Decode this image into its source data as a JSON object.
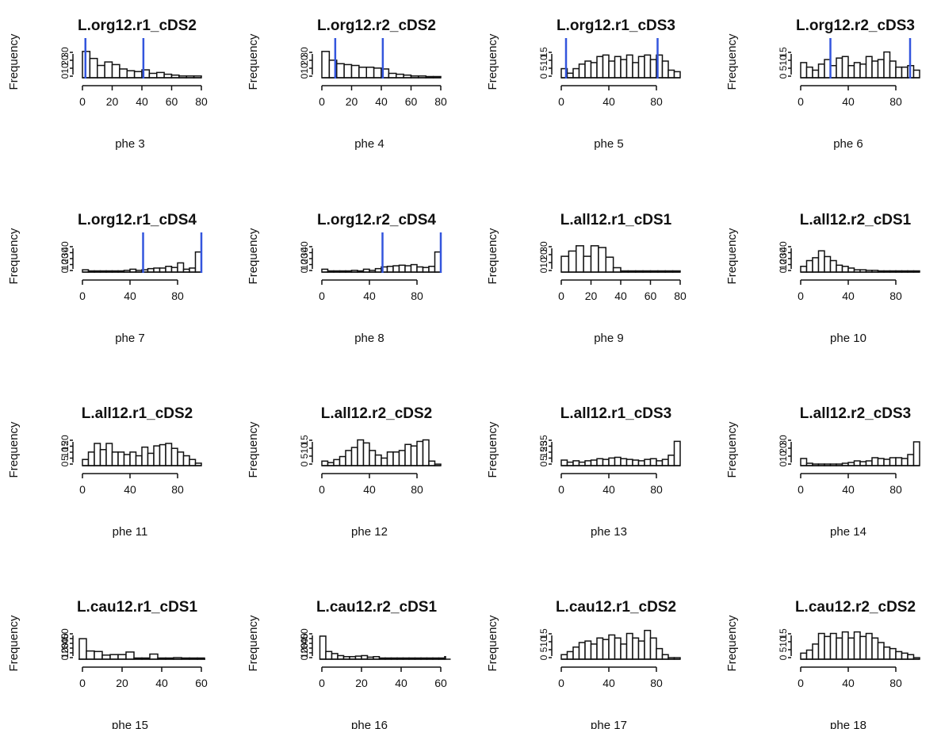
{
  "chart_data": [
    {
      "type": "bar",
      "title": "L.org12.r1_cDS2",
      "xlabel": "phe 3",
      "ylabel": "Frequency",
      "xlim": [
        0,
        80
      ],
      "xticks": [
        0,
        20,
        40,
        60,
        80
      ],
      "yticks": [
        "0",
        "10",
        "20",
        "30"
      ],
      "ylim": [
        0,
        38
      ],
      "bin_start": 0,
      "bin_width": 5,
      "values": [
        30,
        22,
        14,
        18,
        15,
        10,
        8,
        7,
        9,
        5,
        6,
        4,
        3,
        2,
        2,
        2
      ],
      "markers": [
        2,
        41
      ]
    },
    {
      "type": "bar",
      "title": "L.org12.r2_cDS2",
      "xlabel": "phe 4",
      "ylabel": "Frequency",
      "xlim": [
        0,
        80
      ],
      "xticks": [
        0,
        20,
        40,
        60,
        80
      ],
      "yticks": [
        "0",
        "10",
        "20",
        "30"
      ],
      "ylim": [
        0,
        38
      ],
      "bin_start": 0,
      "bin_width": 5,
      "values": [
        30,
        20,
        16,
        15,
        14,
        12,
        12,
        11,
        10,
        5,
        4,
        3,
        2,
        2,
        1,
        1
      ],
      "markers": [
        9,
        41
      ]
    },
    {
      "type": "bar",
      "title": "L.org12.r1_cDS3",
      "xlabel": "phe 5",
      "ylabel": "Frequency",
      "xlim": [
        0,
        100
      ],
      "xticks": [
        0,
        40,
        80
      ],
      "yticks": [
        "0",
        "5",
        "10",
        "15"
      ],
      "ylim": [
        0,
        22
      ],
      "bin_start": 0,
      "bin_width": 5,
      "values": [
        6,
        3,
        6,
        9,
        11,
        10,
        14,
        15,
        11,
        14,
        12,
        15,
        10,
        14,
        15,
        12,
        15,
        11,
        5,
        4
      ],
      "markers": [
        4,
        81
      ]
    },
    {
      "type": "bar",
      "title": "L.org12.r2_cDS3",
      "xlabel": "phe 6",
      "ylabel": "Frequency",
      "xlim": [
        0,
        100
      ],
      "xticks": [
        0,
        40,
        80
      ],
      "yticks": [
        "0",
        "5",
        "10",
        "15"
      ],
      "ylim": [
        0,
        22
      ],
      "bin_start": 0,
      "bin_width": 5,
      "values": [
        10,
        7,
        5,
        9,
        12,
        8,
        13,
        14,
        8,
        10,
        9,
        14,
        11,
        12,
        17,
        11,
        7,
        7,
        8,
        5
      ],
      "markers": [
        25,
        92
      ]
    },
    {
      "type": "bar",
      "title": "L.org12.r1_cDS4",
      "xlabel": "phe 7",
      "ylabel": "Frequency",
      "xlim": [
        0,
        100
      ],
      "xticks": [
        0,
        40,
        80
      ],
      "yticks": [
        "0",
        "10",
        "20",
        "30",
        "40"
      ],
      "ylim": [
        0,
        58
      ],
      "bin_start": 0,
      "bin_width": 5,
      "values": [
        4,
        1,
        1,
        1,
        2,
        2,
        2,
        3,
        5,
        3,
        4,
        6,
        7,
        7,
        10,
        8,
        16,
        5,
        7,
        35
      ],
      "markers": [
        51,
        100
      ]
    },
    {
      "type": "bar",
      "title": "L.org12.r2_cDS4",
      "xlabel": "phe 8",
      "ylabel": "Frequency",
      "xlim": [
        0,
        100
      ],
      "xticks": [
        0,
        40,
        80
      ],
      "yticks": [
        "0",
        "10",
        "20",
        "30",
        "40"
      ],
      "ylim": [
        0,
        58
      ],
      "bin_start": 0,
      "bin_width": 5,
      "values": [
        5,
        1,
        1,
        1,
        2,
        3,
        2,
        5,
        3,
        6,
        9,
        10,
        11,
        12,
        11,
        13,
        9,
        8,
        10,
        35
      ],
      "markers": [
        51,
        100
      ]
    },
    {
      "type": "bar",
      "title": "L.all12.r1_cDS1",
      "xlabel": "phe 9",
      "ylabel": "Frequency",
      "xlim": [
        0,
        80
      ],
      "xticks": [
        0,
        20,
        40,
        60,
        80
      ],
      "yticks": [
        "0",
        "10",
        "20",
        "30"
      ],
      "ylim": [
        0,
        38
      ],
      "bin_start": 0,
      "bin_width": 5,
      "values": [
        18,
        24,
        30,
        18,
        30,
        28,
        17,
        5,
        1,
        1,
        1,
        1,
        1,
        1,
        1,
        1
      ]
    },
    {
      "type": "bar",
      "title": "L.all12.r2_cDS1",
      "xlabel": "phe 10",
      "ylabel": "Frequency",
      "xlim": [
        0,
        100
      ],
      "xticks": [
        0,
        40,
        80
      ],
      "yticks": [
        "0",
        "10",
        "20",
        "30",
        "40"
      ],
      "ylim": [
        0,
        58
      ],
      "bin_start": 0,
      "bin_width": 5,
      "values": [
        10,
        20,
        25,
        37,
        27,
        20,
        12,
        10,
        7,
        4,
        4,
        3,
        3,
        2,
        2,
        2,
        2,
        2,
        2,
        2
      ]
    },
    {
      "type": "bar",
      "title": "L.all12.r1_cDS2",
      "xlabel": "phe 11",
      "ylabel": "Frequency",
      "xlim": [
        0,
        100
      ],
      "xticks": [
        0,
        40,
        80
      ],
      "yticks": [
        "0",
        "5",
        "10",
        "15",
        "20"
      ],
      "ylim": [
        0,
        27
      ],
      "bin_start": 0,
      "bin_width": 5,
      "values": [
        5,
        11,
        18,
        13,
        18,
        11,
        11,
        9,
        11,
        8,
        15,
        10,
        16,
        17,
        18,
        14,
        11,
        8,
        5,
        2
      ]
    },
    {
      "type": "bar",
      "title": "L.all12.r2_cDS2",
      "xlabel": "phe 12",
      "ylabel": "Frequency",
      "xlim": [
        0,
        100
      ],
      "xticks": [
        0,
        40,
        80
      ],
      "yticks": [
        "0",
        "5",
        "10",
        "15"
      ],
      "ylim": [
        0,
        22
      ],
      "bin_start": 0,
      "bin_width": 5,
      "values": [
        3,
        2,
        4,
        6,
        10,
        12,
        17,
        15,
        10,
        7,
        5,
        9,
        9,
        10,
        14,
        13,
        16,
        17,
        3,
        1
      ]
    },
    {
      "type": "bar",
      "title": "L.all12.r1_cDS3",
      "xlabel": "phe 13",
      "ylabel": "Frequency",
      "xlim": [
        0,
        100
      ],
      "xticks": [
        0,
        40,
        80
      ],
      "yticks": [
        "0",
        "5",
        "15",
        "25",
        "35"
      ],
      "ylim": [
        0,
        48
      ],
      "bin_start": 0,
      "bin_width": 5,
      "values": [
        8,
        5,
        7,
        5,
        7,
        8,
        10,
        9,
        11,
        12,
        10,
        9,
        8,
        7,
        9,
        10,
        7,
        9,
        15,
        35
      ]
    },
    {
      "type": "bar",
      "title": "L.all12.r2_cDS3",
      "xlabel": "phe 14",
      "ylabel": "Frequency",
      "xlim": [
        0,
        100
      ],
      "xticks": [
        0,
        40,
        80
      ],
      "yticks": [
        "0",
        "10",
        "20",
        "30"
      ],
      "ylim": [
        0,
        42
      ],
      "bin_start": 0,
      "bin_width": 5,
      "values": [
        9,
        3,
        2,
        2,
        2,
        2,
        2,
        3,
        4,
        6,
        5,
        6,
        10,
        9,
        8,
        10,
        10,
        9,
        14,
        30
      ]
    },
    {
      "type": "bar",
      "title": "L.cau12.r1_cDS1",
      "xlabel": "phe 15",
      "ylabel": "Frequency",
      "xlim": [
        0,
        60
      ],
      "xticks": [
        0,
        20,
        40,
        60
      ],
      "yticks": [
        "0",
        "10",
        "20",
        "30",
        "40",
        "50"
      ],
      "ylim": [
        0,
        65
      ],
      "bin_start": -2,
      "bin_width": 4,
      "values": [
        40,
        16,
        15,
        8,
        9,
        9,
        14,
        2,
        2,
        10,
        2,
        2,
        3,
        2,
        2,
        1
      ]
    },
    {
      "type": "bar",
      "title": "L.cau12.r2_cDS1",
      "xlabel": "phe 16",
      "ylabel": "Frequency",
      "xlim": [
        0,
        60
      ],
      "xticks": [
        0,
        20,
        40,
        60
      ],
      "yticks": [
        "0",
        "10",
        "20",
        "30",
        "40",
        "50"
      ],
      "ylim": [
        0,
        65
      ],
      "bin_start": -1,
      "bin_width": 3,
      "values": [
        45,
        15,
        11,
        7,
        5,
        5,
        6,
        7,
        4,
        5,
        2,
        2,
        2,
        2,
        2,
        2,
        2,
        2,
        2,
        2,
        2,
        5
      ]
    },
    {
      "type": "bar",
      "title": "L.cau12.r1_cDS2",
      "xlabel": "phe 17",
      "ylabel": "Frequency",
      "xlim": [
        0,
        100
      ],
      "xticks": [
        0,
        40,
        80
      ],
      "yticks": [
        "0",
        "5",
        "10",
        "15"
      ],
      "ylim": [
        0,
        22
      ],
      "bin_start": 0,
      "bin_width": 5,
      "values": [
        3,
        5,
        8,
        11,
        12,
        10,
        14,
        13,
        16,
        14,
        10,
        17,
        14,
        12,
        19,
        14,
        7,
        3,
        1,
        1
      ]
    },
    {
      "type": "bar",
      "title": "L.cau12.r2_cDS2",
      "xlabel": "phe 18",
      "ylabel": "Frequency",
      "xlim": [
        0,
        100
      ],
      "xticks": [
        0,
        40,
        80
      ],
      "yticks": [
        "0",
        "5",
        "10",
        "15"
      ],
      "ylim": [
        0,
        22
      ],
      "bin_start": 0,
      "bin_width": 5,
      "values": [
        4,
        6,
        10,
        17,
        15,
        17,
        14,
        18,
        14,
        18,
        15,
        17,
        14,
        11,
        8,
        7,
        5,
        4,
        3,
        1
      ]
    }
  ],
  "colors": {
    "bar_fill": "#ffffff",
    "bar_stroke": "#111111",
    "marker": "#3355dd"
  }
}
